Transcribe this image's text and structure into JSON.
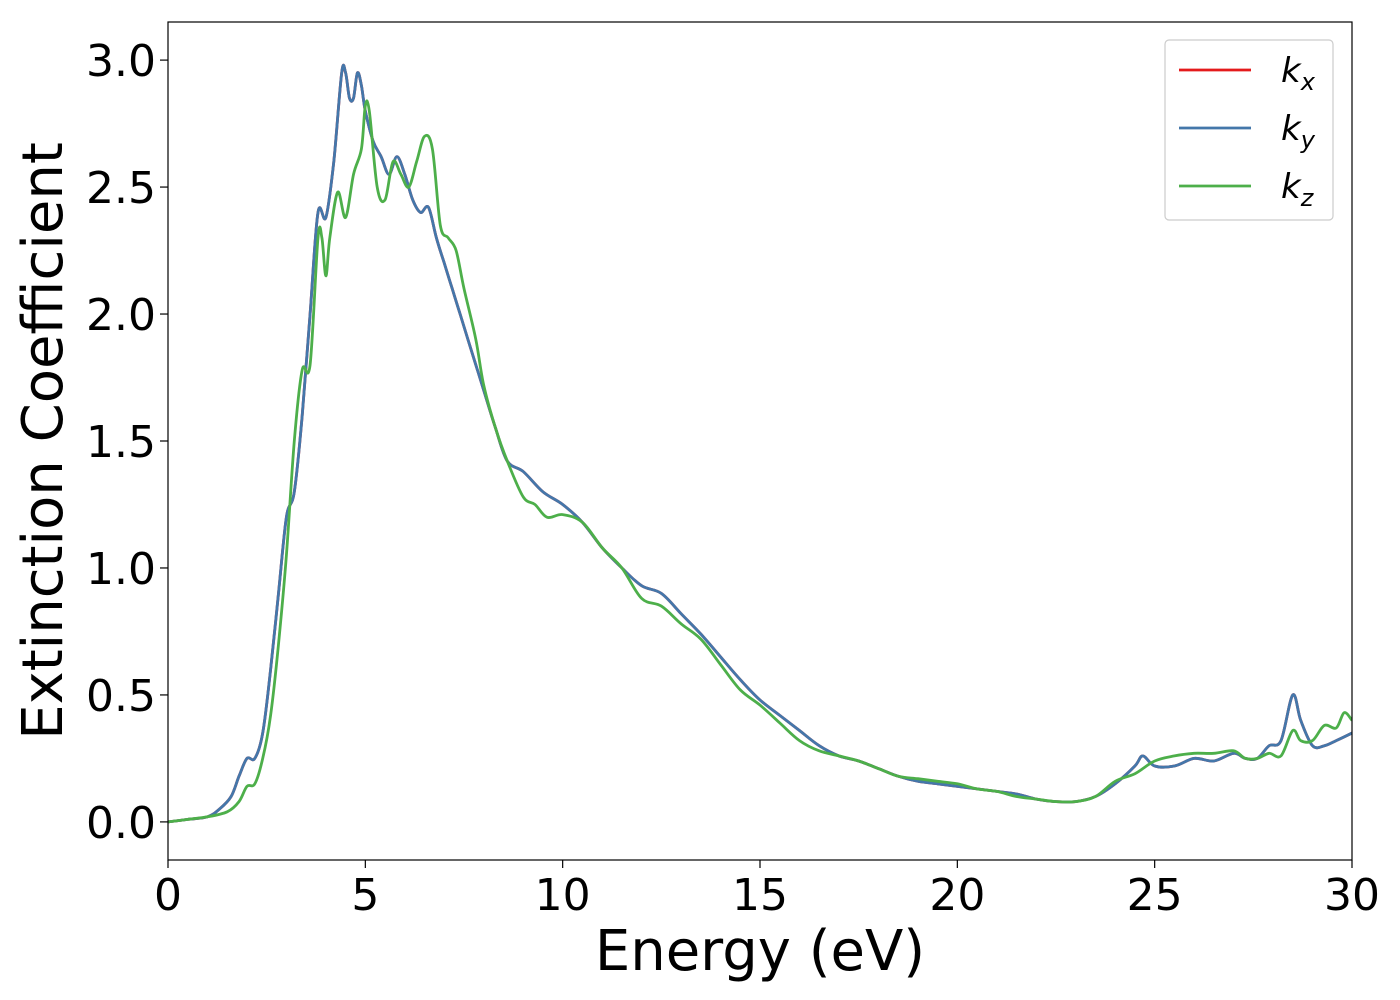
{
  "chart_data": {
    "type": "line",
    "title": "",
    "xlabel": "Energy (eV)",
    "ylabel": "Extinction Coefficient",
    "xlim": [
      0,
      30
    ],
    "ylim": [
      -0.15,
      3.15
    ],
    "xticks": [
      0,
      5,
      10,
      15,
      20,
      25,
      30
    ],
    "xtick_labels": [
      "0",
      "5",
      "10",
      "15",
      "20",
      "25",
      "30"
    ],
    "yticks": [
      0.0,
      0.5,
      1.0,
      1.5,
      2.0,
      2.5,
      3.0
    ],
    "ytick_labels": [
      "0.0",
      "0.5",
      "1.0",
      "1.5",
      "2.0",
      "2.5",
      "3.0"
    ],
    "grid": false,
    "legend_position": "top-right",
    "series": [
      {
        "name": "k",
        "subscript": "x",
        "color": "#e41a1c",
        "x": [
          0,
          0.5,
          1.0,
          1.3,
          1.6,
          1.8,
          2.0,
          2.2,
          2.4,
          2.6,
          2.8,
          3.0,
          3.2,
          3.4,
          3.6,
          3.8,
          4.0,
          4.2,
          4.4,
          4.5,
          4.6,
          4.7,
          4.8,
          4.9,
          5.0,
          5.2,
          5.4,
          5.6,
          5.8,
          6.0,
          6.2,
          6.4,
          6.6,
          6.8,
          7.0,
          7.2,
          7.4,
          7.6,
          7.8,
          8.0,
          8.3,
          8.6,
          9.0,
          9.5,
          10.0,
          10.5,
          11.0,
          11.5,
          12.0,
          12.5,
          13.0,
          13.5,
          14.0,
          14.5,
          15.0,
          15.5,
          16.0,
          16.5,
          17.0,
          17.5,
          18.0,
          18.5,
          19.0,
          19.5,
          20.0,
          20.5,
          21.0,
          21.5,
          22.0,
          22.5,
          23.0,
          23.5,
          24.0,
          24.5,
          24.7,
          25.0,
          25.5,
          26.0,
          26.5,
          27.0,
          27.3,
          27.6,
          27.9,
          28.2,
          28.5,
          28.7,
          29.0,
          29.3,
          29.6,
          30.0
        ],
        "y": [
          0.0,
          0.01,
          0.02,
          0.05,
          0.1,
          0.18,
          0.25,
          0.25,
          0.35,
          0.6,
          0.9,
          1.2,
          1.3,
          1.6,
          2.0,
          2.4,
          2.38,
          2.6,
          2.95,
          2.95,
          2.85,
          2.85,
          2.95,
          2.9,
          2.8,
          2.68,
          2.62,
          2.55,
          2.62,
          2.55,
          2.45,
          2.4,
          2.42,
          2.3,
          2.2,
          2.1,
          2.0,
          1.9,
          1.8,
          1.7,
          1.55,
          1.42,
          1.38,
          1.3,
          1.25,
          1.18,
          1.08,
          1.0,
          0.93,
          0.9,
          0.82,
          0.74,
          0.65,
          0.56,
          0.48,
          0.42,
          0.36,
          0.3,
          0.26,
          0.24,
          0.21,
          0.18,
          0.16,
          0.15,
          0.14,
          0.13,
          0.12,
          0.11,
          0.09,
          0.08,
          0.08,
          0.1,
          0.15,
          0.22,
          0.26,
          0.22,
          0.22,
          0.25,
          0.24,
          0.27,
          0.25,
          0.25,
          0.3,
          0.32,
          0.5,
          0.4,
          0.3,
          0.3,
          0.32,
          0.35
        ]
      },
      {
        "name": "k",
        "subscript": "y",
        "color": "#4477aa",
        "x": [
          0,
          0.5,
          1.0,
          1.3,
          1.6,
          1.8,
          2.0,
          2.2,
          2.4,
          2.6,
          2.8,
          3.0,
          3.2,
          3.4,
          3.6,
          3.8,
          4.0,
          4.2,
          4.4,
          4.5,
          4.6,
          4.7,
          4.8,
          4.9,
          5.0,
          5.2,
          5.4,
          5.6,
          5.8,
          6.0,
          6.2,
          6.4,
          6.6,
          6.8,
          7.0,
          7.2,
          7.4,
          7.6,
          7.8,
          8.0,
          8.3,
          8.6,
          9.0,
          9.5,
          10.0,
          10.5,
          11.0,
          11.5,
          12.0,
          12.5,
          13.0,
          13.5,
          14.0,
          14.5,
          15.0,
          15.5,
          16.0,
          16.5,
          17.0,
          17.5,
          18.0,
          18.5,
          19.0,
          19.5,
          20.0,
          20.5,
          21.0,
          21.5,
          22.0,
          22.5,
          23.0,
          23.5,
          24.0,
          24.5,
          24.7,
          25.0,
          25.5,
          26.0,
          26.5,
          27.0,
          27.3,
          27.6,
          27.9,
          28.2,
          28.5,
          28.7,
          29.0,
          29.3,
          29.6,
          30.0
        ],
        "y": [
          0.0,
          0.01,
          0.02,
          0.05,
          0.1,
          0.18,
          0.25,
          0.25,
          0.35,
          0.6,
          0.9,
          1.2,
          1.3,
          1.6,
          2.0,
          2.4,
          2.38,
          2.6,
          2.95,
          2.95,
          2.85,
          2.85,
          2.95,
          2.9,
          2.8,
          2.68,
          2.62,
          2.55,
          2.62,
          2.55,
          2.45,
          2.4,
          2.42,
          2.3,
          2.2,
          2.1,
          2.0,
          1.9,
          1.8,
          1.7,
          1.55,
          1.42,
          1.38,
          1.3,
          1.25,
          1.18,
          1.08,
          1.0,
          0.93,
          0.9,
          0.82,
          0.74,
          0.65,
          0.56,
          0.48,
          0.42,
          0.36,
          0.3,
          0.26,
          0.24,
          0.21,
          0.18,
          0.16,
          0.15,
          0.14,
          0.13,
          0.12,
          0.11,
          0.09,
          0.08,
          0.08,
          0.1,
          0.15,
          0.22,
          0.26,
          0.22,
          0.22,
          0.25,
          0.24,
          0.27,
          0.25,
          0.25,
          0.3,
          0.32,
          0.5,
          0.4,
          0.3,
          0.3,
          0.32,
          0.35
        ]
      },
      {
        "name": "k",
        "subscript": "z",
        "color": "#4daf4a",
        "x": [
          0,
          0.5,
          1.0,
          1.5,
          1.8,
          2.0,
          2.2,
          2.4,
          2.6,
          2.8,
          3.0,
          3.2,
          3.4,
          3.6,
          3.8,
          3.9,
          4.0,
          4.1,
          4.3,
          4.5,
          4.7,
          4.9,
          5.0,
          5.1,
          5.3,
          5.5,
          5.7,
          5.9,
          6.1,
          6.3,
          6.5,
          6.7,
          6.9,
          7.1,
          7.3,
          7.5,
          7.8,
          8.0,
          8.3,
          8.6,
          9.0,
          9.3,
          9.6,
          10.0,
          10.5,
          11.0,
          11.5,
          12.0,
          12.5,
          13.0,
          13.5,
          14.0,
          14.5,
          15.0,
          15.5,
          16.0,
          16.5,
          17.0,
          17.5,
          18.0,
          18.5,
          19.0,
          19.5,
          20.0,
          20.5,
          21.0,
          21.5,
          22.0,
          22.5,
          23.0,
          23.5,
          24.0,
          24.5,
          25.0,
          25.5,
          26.0,
          26.5,
          27.0,
          27.3,
          27.6,
          27.9,
          28.2,
          28.5,
          28.7,
          29.0,
          29.3,
          29.6,
          29.8,
          30.0
        ],
        "y": [
          0.0,
          0.01,
          0.02,
          0.04,
          0.08,
          0.14,
          0.15,
          0.25,
          0.42,
          0.7,
          1.05,
          1.5,
          1.78,
          1.8,
          2.3,
          2.3,
          2.15,
          2.3,
          2.48,
          2.38,
          2.55,
          2.65,
          2.82,
          2.8,
          2.5,
          2.45,
          2.6,
          2.55,
          2.5,
          2.6,
          2.7,
          2.65,
          2.35,
          2.3,
          2.25,
          2.1,
          1.9,
          1.72,
          1.55,
          1.42,
          1.28,
          1.25,
          1.2,
          1.21,
          1.18,
          1.08,
          1.0,
          0.88,
          0.85,
          0.78,
          0.72,
          0.62,
          0.52,
          0.46,
          0.39,
          0.32,
          0.28,
          0.26,
          0.24,
          0.21,
          0.18,
          0.17,
          0.16,
          0.15,
          0.13,
          0.12,
          0.1,
          0.09,
          0.08,
          0.08,
          0.1,
          0.16,
          0.19,
          0.24,
          0.26,
          0.27,
          0.27,
          0.28,
          0.25,
          0.25,
          0.27,
          0.26,
          0.36,
          0.32,
          0.32,
          0.38,
          0.37,
          0.43,
          0.4
        ]
      }
    ]
  }
}
